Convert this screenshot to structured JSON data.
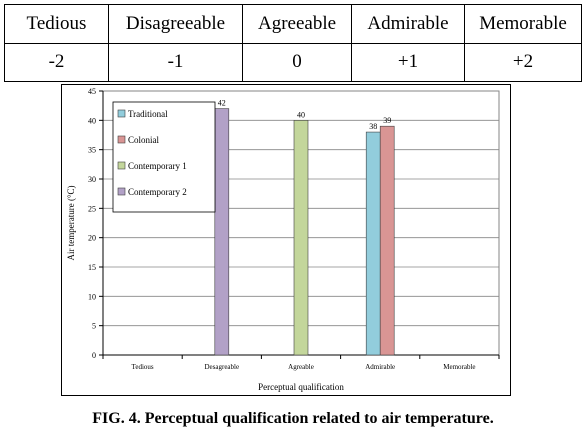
{
  "scale_table": {
    "headers": [
      "Tedious",
      "Disagreeable",
      "Agreeable",
      "Admirable",
      "Memorable"
    ],
    "values": [
      "-2",
      "-1",
      "0",
      "+1",
      "+2"
    ]
  },
  "chart_data": {
    "type": "bar",
    "title": "",
    "xlabel": "Perceptual qualification",
    "ylabel": "Air temperature (°C)",
    "categories": [
      "Tedious",
      "Desagreable",
      "Agreable",
      "Admirable",
      "Memorable"
    ],
    "ylim": [
      0,
      45
    ],
    "yticks": [
      0,
      5,
      10,
      15,
      20,
      25,
      30,
      35,
      40,
      45
    ],
    "grid": true,
    "legend_position": "top-left",
    "series": [
      {
        "name": "Traditional",
        "color": "#92cddc",
        "values": [
          null,
          null,
          null,
          38,
          null
        ]
      },
      {
        "name": "Colonial",
        "color": "#d99594",
        "values": [
          null,
          null,
          null,
          39,
          null
        ]
      },
      {
        "name": "Contemporary 1",
        "color": "#c3d69b",
        "values": [
          null,
          null,
          40,
          null,
          null
        ]
      },
      {
        "name": "Contemporary 2",
        "color": "#b2a1c7",
        "values": [
          null,
          42,
          null,
          null,
          null
        ]
      }
    ]
  },
  "caption": "FIG. 4. Perceptual qualification related to air temperature."
}
